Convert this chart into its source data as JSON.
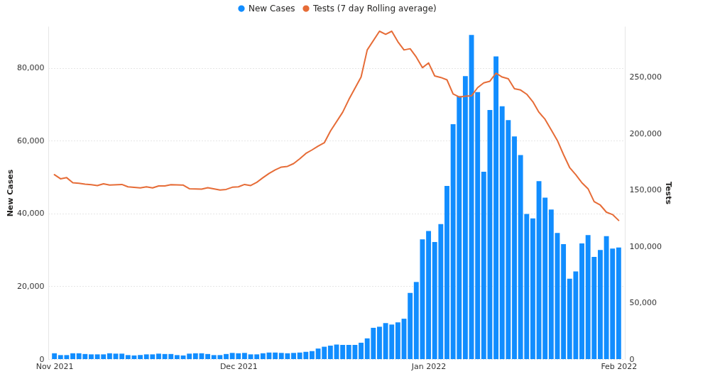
{
  "chart_data": {
    "type": "bar",
    "ylabel": "New Cases",
    "y2label": "Tests",
    "legend": "top",
    "grid": "y",
    "x": [
      "2021-11-01",
      "2021-11-02",
      "2021-11-03",
      "2021-11-04",
      "2021-11-05",
      "2021-11-06",
      "2021-11-07",
      "2021-11-08",
      "2021-11-09",
      "2021-11-10",
      "2021-11-11",
      "2021-11-12",
      "2021-11-13",
      "2021-11-14",
      "2021-11-15",
      "2021-11-16",
      "2021-11-17",
      "2021-11-18",
      "2021-11-19",
      "2021-11-20",
      "2021-11-21",
      "2021-11-22",
      "2021-11-23",
      "2021-11-24",
      "2021-11-25",
      "2021-11-26",
      "2021-11-27",
      "2021-11-28",
      "2021-11-29",
      "2021-11-30",
      "2021-12-01",
      "2021-12-02",
      "2021-12-03",
      "2021-12-04",
      "2021-12-05",
      "2021-12-06",
      "2021-12-07",
      "2021-12-08",
      "2021-12-09",
      "2021-12-10",
      "2021-12-11",
      "2021-12-12",
      "2021-12-13",
      "2021-12-14",
      "2021-12-15",
      "2021-12-16",
      "2021-12-17",
      "2021-12-18",
      "2021-12-19",
      "2021-12-20",
      "2021-12-21",
      "2021-12-22",
      "2021-12-23",
      "2021-12-24",
      "2021-12-25",
      "2021-12-26",
      "2021-12-27",
      "2021-12-28",
      "2021-12-29",
      "2021-12-30",
      "2021-12-31",
      "2022-01-01",
      "2022-01-02",
      "2022-01-03",
      "2022-01-04",
      "2022-01-05",
      "2022-01-06",
      "2022-01-07",
      "2022-01-08",
      "2022-01-09",
      "2022-01-10",
      "2022-01-11",
      "2022-01-12",
      "2022-01-13",
      "2022-01-14",
      "2022-01-15",
      "2022-01-16",
      "2022-01-17",
      "2022-01-18",
      "2022-01-19",
      "2022-01-20",
      "2022-01-21",
      "2022-01-22",
      "2022-01-23",
      "2022-01-24",
      "2022-01-25",
      "2022-01-26",
      "2022-01-27",
      "2022-01-28",
      "2022-01-29",
      "2022-01-30",
      "2022-01-31",
      "2022-02-01"
    ],
    "series": [
      {
        "name": "New Cases",
        "color": "#118dff",
        "values": [
          1600,
          1100,
          1100,
          1600,
          1600,
          1400,
          1300,
          1300,
          1300,
          1600,
          1500,
          1500,
          1100,
          1000,
          1100,
          1300,
          1300,
          1500,
          1400,
          1400,
          1100,
          1000,
          1500,
          1600,
          1600,
          1400,
          1100,
          1100,
          1400,
          1700,
          1600,
          1700,
          1300,
          1300,
          1600,
          1800,
          1800,
          1700,
          1600,
          1700,
          1800,
          2000,
          2200,
          2900,
          3400,
          3700,
          4000,
          3900,
          3900,
          3900,
          4500,
          5700,
          8600,
          8900,
          9900,
          9500,
          10100,
          11100,
          18200,
          21200,
          32900,
          35200,
          32200,
          37100,
          47600,
          64600,
          72300,
          77800,
          89100,
          73400,
          51500,
          68500,
          83200,
          69500,
          65700,
          61200,
          56100,
          39900,
          38700,
          48900,
          44400,
          41100,
          34700,
          31600,
          22100,
          24100,
          31800,
          34100,
          28100,
          30000,
          33800,
          30400,
          30700
        ]
      },
      {
        "name": "Tests (7 day Rolling average)",
        "type": "line",
        "axis": "y2",
        "color": "#e66c37",
        "x": [
          "2021-11-01",
          "2021-11-02",
          "2021-11-03",
          "2021-11-04",
          "2021-11-05",
          "2021-11-06",
          "2021-11-07",
          "2021-11-08",
          "2021-11-09",
          "2021-11-10",
          "2021-11-12",
          "2021-11-13",
          "2021-11-15",
          "2021-11-16",
          "2021-11-17",
          "2021-11-18",
          "2021-11-19",
          "2021-11-20",
          "2021-11-22",
          "2021-11-23",
          "2021-11-25",
          "2021-11-26",
          "2021-11-28",
          "2021-11-29",
          "2021-11-30",
          "2021-12-01",
          "2021-12-02",
          "2021-12-03",
          "2021-12-04",
          "2021-12-05",
          "2021-12-06",
          "2021-12-07",
          "2021-12-08",
          "2021-12-09",
          "2021-12-10",
          "2021-12-11",
          "2021-12-12",
          "2021-12-13",
          "2021-12-14",
          "2021-12-15",
          "2021-12-16",
          "2021-12-18",
          "2021-12-19",
          "2021-12-21",
          "2021-12-22",
          "2021-12-24",
          "2021-12-25",
          "2021-12-26",
          "2021-12-27",
          "2021-12-28",
          "2021-12-29",
          "2021-12-30",
          "2021-12-31",
          "2022-01-01",
          "2022-01-02",
          "2022-01-03",
          "2022-01-04",
          "2022-01-05",
          "2022-01-06",
          "2022-01-07",
          "2022-01-08",
          "2022-01-09",
          "2022-01-10",
          "2022-01-11",
          "2022-01-12",
          "2022-01-13",
          "2022-01-14",
          "2022-01-15",
          "2022-01-16",
          "2022-01-17",
          "2022-01-18",
          "2022-01-19",
          "2022-01-20",
          "2022-01-21",
          "2022-01-22",
          "2022-01-23",
          "2022-01-24",
          "2022-01-25",
          "2022-01-26",
          "2022-01-27",
          "2022-01-28",
          "2022-01-29",
          "2022-01-30",
          "2022-01-31",
          "2022-02-01"
        ],
        "values": [
          163500,
          159800,
          160800,
          156300,
          155800,
          155000,
          154600,
          153800,
          155400,
          154200,
          154800,
          152700,
          151700,
          152700,
          151700,
          153500,
          153500,
          154600,
          154200,
          151000,
          150600,
          151900,
          149800,
          150400,
          152300,
          152700,
          154800,
          153800,
          156700,
          160800,
          164600,
          167700,
          170200,
          170800,
          173300,
          177500,
          182300,
          185400,
          188800,
          191700,
          202100,
          218800,
          230000,
          250000,
          274000,
          290600,
          287900,
          290600,
          281300,
          274000,
          275100,
          267700,
          258300,
          262500,
          251000,
          249600,
          247500,
          235000,
          232300,
          233000,
          233300,
          240600,
          244800,
          246300,
          253500,
          250000,
          248500,
          239600,
          238500,
          234800,
          228100,
          218800,
          212500,
          203100,
          193800,
          181300,
          169800,
          163500,
          156300,
          151000,
          139600,
          136500,
          130200,
          128100,
          122900
        ]
      }
    ],
    "xlim": [
      "2021-10-31",
      "2022-02-02"
    ],
    "xticks": [
      {
        "value": "2021-11-01",
        "label": "Nov 2021"
      },
      {
        "value": "2021-12-01",
        "label": "Dec 2021"
      },
      {
        "value": "2022-01-01",
        "label": "Jan 2022"
      },
      {
        "value": "2022-02-01",
        "label": "Feb 2022"
      }
    ],
    "ylim": [
      0,
      91500
    ],
    "yticks": [
      {
        "value": 0,
        "label": "0"
      },
      {
        "value": 20000,
        "label": "20,000"
      },
      {
        "value": 40000,
        "label": "40,000"
      },
      {
        "value": 60000,
        "label": "60,000"
      },
      {
        "value": 80000,
        "label": "80,000"
      }
    ],
    "y2lim": [
      0,
      295000
    ],
    "y2ticks": [
      {
        "value": 0,
        "label": "0"
      },
      {
        "value": 50000,
        "label": "50,000"
      },
      {
        "value": 100000,
        "label": "100,000"
      },
      {
        "value": 150000,
        "label": "150,000"
      },
      {
        "value": 200000,
        "label": "200,000"
      },
      {
        "value": 250000,
        "label": "250,000"
      }
    ]
  }
}
